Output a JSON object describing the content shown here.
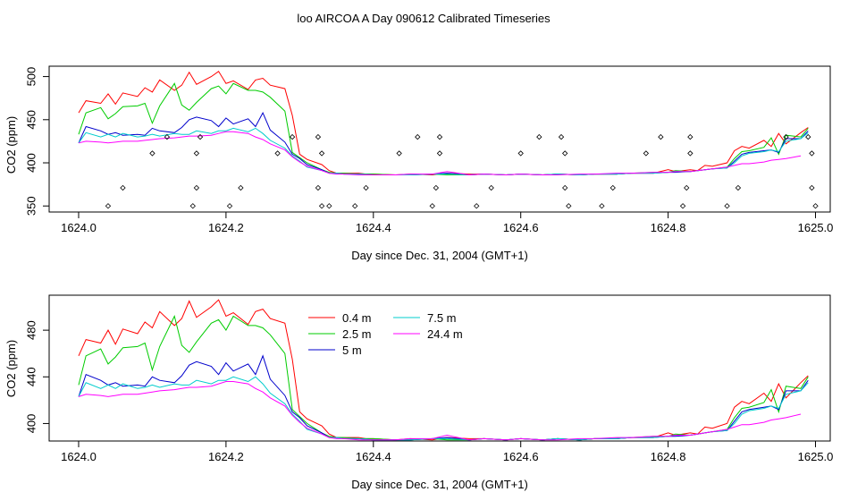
{
  "page": {
    "title": "loo AIRCOA A  Day 090612  Calibrated Timeseries"
  },
  "chart_data": [
    {
      "type": "line",
      "xlabel": "Day since Dec. 31, 2004 (GMT+1)",
      "ylabel": "CO2 (ppm)",
      "xlim": [
        1623.96,
        1625.02
      ],
      "ylim": [
        343,
        512
      ],
      "x_ticks": [
        "1624.0",
        "1624.2",
        "1624.4",
        "1624.6",
        "1624.8",
        "1625.0"
      ],
      "y_ticks": [
        "350",
        "400",
        "450",
        "500"
      ],
      "series": [
        {
          "color": "#ff0000",
          "x": [
            1624.0,
            1624.01,
            1624.03,
            1624.04,
            1624.05,
            1624.06,
            1624.08,
            1624.09,
            1624.1,
            1624.11,
            1624.13,
            1624.14,
            1624.15,
            1624.16,
            1624.18,
            1624.19,
            1624.2,
            1624.21,
            1624.23,
            1624.24,
            1624.25,
            1624.26,
            1624.28,
            1624.29,
            1624.3,
            1624.31,
            1624.33,
            1624.34,
            1624.35,
            1624.36,
            1624.38,
            1624.39,
            1624.4,
            1624.43,
            1624.45,
            1624.48,
            1624.5,
            1624.53,
            1624.55,
            1624.58,
            1624.6,
            1624.63,
            1624.65,
            1624.68,
            1624.7,
            1624.73,
            1624.75,
            1624.78,
            1624.8,
            1624.81,
            1624.83,
            1624.84,
            1624.85,
            1624.86,
            1624.88,
            1624.89,
            1624.9,
            1624.91,
            1624.93,
            1624.94,
            1624.95,
            1624.96,
            1624.98,
            1624.99
          ],
          "y": [
            458,
            472,
            469,
            480,
            468,
            481,
            477,
            487,
            482,
            496,
            484,
            490,
            505,
            491,
            500,
            506,
            492,
            495,
            485,
            496,
            498,
            490,
            486,
            455,
            410,
            404,
            398,
            391,
            388,
            388,
            388,
            387,
            387,
            386,
            387,
            386,
            388,
            387,
            387,
            386,
            387,
            386,
            387,
            386,
            387,
            387,
            388,
            388,
            392,
            390,
            392,
            391,
            397,
            396,
            400,
            414,
            419,
            417,
            426,
            419,
            434,
            422,
            435,
            441
          ]
        },
        {
          "color": "#00cc00",
          "x": [
            1624.0,
            1624.01,
            1624.03,
            1624.04,
            1624.05,
            1624.06,
            1624.08,
            1624.09,
            1624.1,
            1624.11,
            1624.13,
            1624.14,
            1624.15,
            1624.16,
            1624.18,
            1624.19,
            1624.2,
            1624.21,
            1624.23,
            1624.24,
            1624.25,
            1624.26,
            1624.28,
            1624.29,
            1624.3,
            1624.31,
            1624.33,
            1624.34,
            1624.35,
            1624.36,
            1624.38,
            1624.4,
            1624.43,
            1624.45,
            1624.48,
            1624.5,
            1624.53,
            1624.55,
            1624.58,
            1624.6,
            1624.63,
            1624.65,
            1624.68,
            1624.7,
            1624.73,
            1624.75,
            1624.78,
            1624.8,
            1624.81,
            1624.83,
            1624.84,
            1624.85,
            1624.86,
            1624.88,
            1624.89,
            1624.9,
            1624.91,
            1624.93,
            1624.94,
            1624.95,
            1624.96,
            1624.98,
            1624.99
          ],
          "y": [
            433,
            458,
            464,
            451,
            457,
            465,
            466,
            469,
            446,
            466,
            492,
            467,
            461,
            470,
            486,
            489,
            480,
            492,
            484,
            484,
            482,
            476,
            460,
            412,
            406,
            400,
            392,
            389,
            388,
            388,
            387,
            387,
            386,
            386,
            387,
            386,
            386,
            387,
            386,
            387,
            386,
            387,
            386,
            387,
            387,
            388,
            389,
            389,
            391,
            390,
            391,
            392,
            393,
            395,
            405,
            413,
            414,
            418,
            429,
            410,
            432,
            430,
            440
          ]
        },
        {
          "color": "#0000cc",
          "x": [
            1624.0,
            1624.01,
            1624.03,
            1624.04,
            1624.05,
            1624.06,
            1624.08,
            1624.09,
            1624.1,
            1624.11,
            1624.13,
            1624.14,
            1624.15,
            1624.16,
            1624.18,
            1624.19,
            1624.2,
            1624.21,
            1624.23,
            1624.24,
            1624.25,
            1624.26,
            1624.28,
            1624.29,
            1624.3,
            1624.31,
            1624.33,
            1624.34,
            1624.35,
            1624.36,
            1624.38,
            1624.4,
            1624.43,
            1624.45,
            1624.48,
            1624.5,
            1624.53,
            1624.55,
            1624.58,
            1624.6,
            1624.63,
            1624.65,
            1624.68,
            1624.7,
            1624.73,
            1624.75,
            1624.78,
            1624.8,
            1624.81,
            1624.83,
            1624.84,
            1624.85,
            1624.86,
            1624.88,
            1624.89,
            1624.9,
            1624.91,
            1624.93,
            1624.94,
            1624.95,
            1624.96,
            1624.98,
            1624.99
          ],
          "y": [
            423,
            442,
            437,
            433,
            435,
            432,
            433,
            432,
            440,
            437,
            435,
            441,
            450,
            453,
            449,
            442,
            452,
            445,
            451,
            442,
            458,
            438,
            424,
            410,
            405,
            398,
            392,
            388,
            388,
            387,
            387,
            386,
            386,
            386,
            387,
            388,
            386,
            387,
            386,
            387,
            386,
            387,
            386,
            387,
            387,
            388,
            388,
            389,
            389,
            390,
            391,
            392,
            393,
            394,
            402,
            410,
            412,
            414,
            415,
            412,
            428,
            428,
            437
          ]
        },
        {
          "color": "#00cccc",
          "x": [
            1624.0,
            1624.01,
            1624.03,
            1624.04,
            1624.05,
            1624.06,
            1624.08,
            1624.09,
            1624.1,
            1624.11,
            1624.13,
            1624.14,
            1624.15,
            1624.16,
            1624.18,
            1624.19,
            1624.2,
            1624.21,
            1624.23,
            1624.24,
            1624.25,
            1624.26,
            1624.28,
            1624.29,
            1624.3,
            1624.31,
            1624.33,
            1624.34,
            1624.35,
            1624.36,
            1624.38,
            1624.4,
            1624.43,
            1624.45,
            1624.48,
            1624.5,
            1624.53,
            1624.55,
            1624.58,
            1624.6,
            1624.63,
            1624.65,
            1624.68,
            1624.7,
            1624.73,
            1624.75,
            1624.78,
            1624.8,
            1624.81,
            1624.83,
            1624.84,
            1624.85,
            1624.86,
            1624.88,
            1624.89,
            1624.9,
            1624.91,
            1624.93,
            1624.94,
            1624.95,
            1624.96,
            1624.98,
            1624.99
          ],
          "y": [
            423,
            435,
            430,
            433,
            430,
            434,
            430,
            431,
            433,
            431,
            434,
            433,
            433,
            437,
            434,
            437,
            437,
            440,
            436,
            440,
            434,
            426,
            417,
            408,
            402,
            395,
            391,
            388,
            388,
            387,
            387,
            386,
            386,
            386,
            387,
            387,
            386,
            387,
            386,
            387,
            386,
            387,
            386,
            387,
            387,
            388,
            388,
            389,
            390,
            390,
            391,
            392,
            393,
            394,
            400,
            408,
            411,
            413,
            415,
            413,
            425,
            428,
            435
          ]
        },
        {
          "color": "#ff00ff",
          "x": [
            1624.0,
            1624.01,
            1624.03,
            1624.04,
            1624.05,
            1624.06,
            1624.08,
            1624.09,
            1624.1,
            1624.11,
            1624.13,
            1624.14,
            1624.15,
            1624.16,
            1624.18,
            1624.19,
            1624.2,
            1624.21,
            1624.23,
            1624.24,
            1624.25,
            1624.26,
            1624.28,
            1624.29,
            1624.3,
            1624.31,
            1624.33,
            1624.34,
            1624.35,
            1624.36,
            1624.38,
            1624.4,
            1624.43,
            1624.45,
            1624.48,
            1624.5,
            1624.53,
            1624.55,
            1624.58,
            1624.6,
            1624.63,
            1624.65,
            1624.68,
            1624.7,
            1624.73,
            1624.75,
            1624.78,
            1624.8,
            1624.81,
            1624.83,
            1624.84,
            1624.85,
            1624.86,
            1624.88,
            1624.89,
            1624.9,
            1624.91,
            1624.93,
            1624.94,
            1624.95,
            1624.96,
            1624.98
          ],
          "y": [
            423,
            425,
            424,
            423,
            424,
            425,
            425,
            426,
            427,
            428,
            429,
            430,
            431,
            431,
            432,
            434,
            436,
            436,
            434,
            430,
            427,
            422,
            415,
            407,
            401,
            396,
            391,
            388,
            387,
            387,
            386,
            386,
            386,
            387,
            387,
            390,
            386,
            387,
            386,
            387,
            386,
            386,
            387,
            387,
            388,
            388,
            389,
            389,
            390,
            390,
            391,
            392,
            393,
            395,
            397,
            399,
            399,
            401,
            403,
            404,
            405,
            408
          ]
        }
      ],
      "flags": {
        "x": [
          1624.04,
          1624.06,
          1624.1,
          1624.12,
          1624.155,
          1624.16,
          1624.16,
          1624.165,
          1624.205,
          1624.22,
          1624.27,
          1624.29,
          1624.325,
          1624.33,
          1624.325,
          1624.33,
          1624.34,
          1624.375,
          1624.39,
          1624.435,
          1624.46,
          1624.48,
          1624.485,
          1624.49,
          1624.49,
          1624.54,
          1624.56,
          1624.6,
          1624.625,
          1624.655,
          1624.66,
          1624.66,
          1624.665,
          1624.71,
          1624.725,
          1624.77,
          1624.79,
          1624.82,
          1624.825,
          1624.83,
          1624.83,
          1624.88,
          1624.895,
          1624.96,
          1624.99,
          1624.995,
          1624.995,
          1625.0
        ],
        "y": [
          350,
          371,
          411,
          430,
          350,
          371,
          411,
          430,
          350,
          371,
          411,
          430,
          430,
          411,
          371,
          350,
          350,
          350,
          371,
          411,
          430,
          350,
          371,
          411,
          430,
          350,
          371,
          411,
          430,
          430,
          411,
          371,
          350,
          350,
          371,
          411,
          430,
          350,
          371,
          411,
          430,
          350,
          371,
          430,
          430,
          411,
          371,
          350
        ]
      }
    },
    {
      "type": "line",
      "xlabel": "Day since Dec. 31, 2004 (GMT+1)",
      "ylabel": "CO2 (ppm)",
      "xlim": [
        1623.96,
        1625.02
      ],
      "ylim": [
        385,
        510
      ],
      "x_ticks": [
        "1624.0",
        "1624.2",
        "1624.4",
        "1624.6",
        "1624.8",
        "1625.0"
      ],
      "y_ticks": [
        "400",
        "440",
        "480"
      ],
      "legend": [
        "0.4 m",
        "2.5 m",
        "5 m",
        "7.5 m",
        "24.4 m"
      ],
      "legend_placement": "top-left"
    }
  ]
}
